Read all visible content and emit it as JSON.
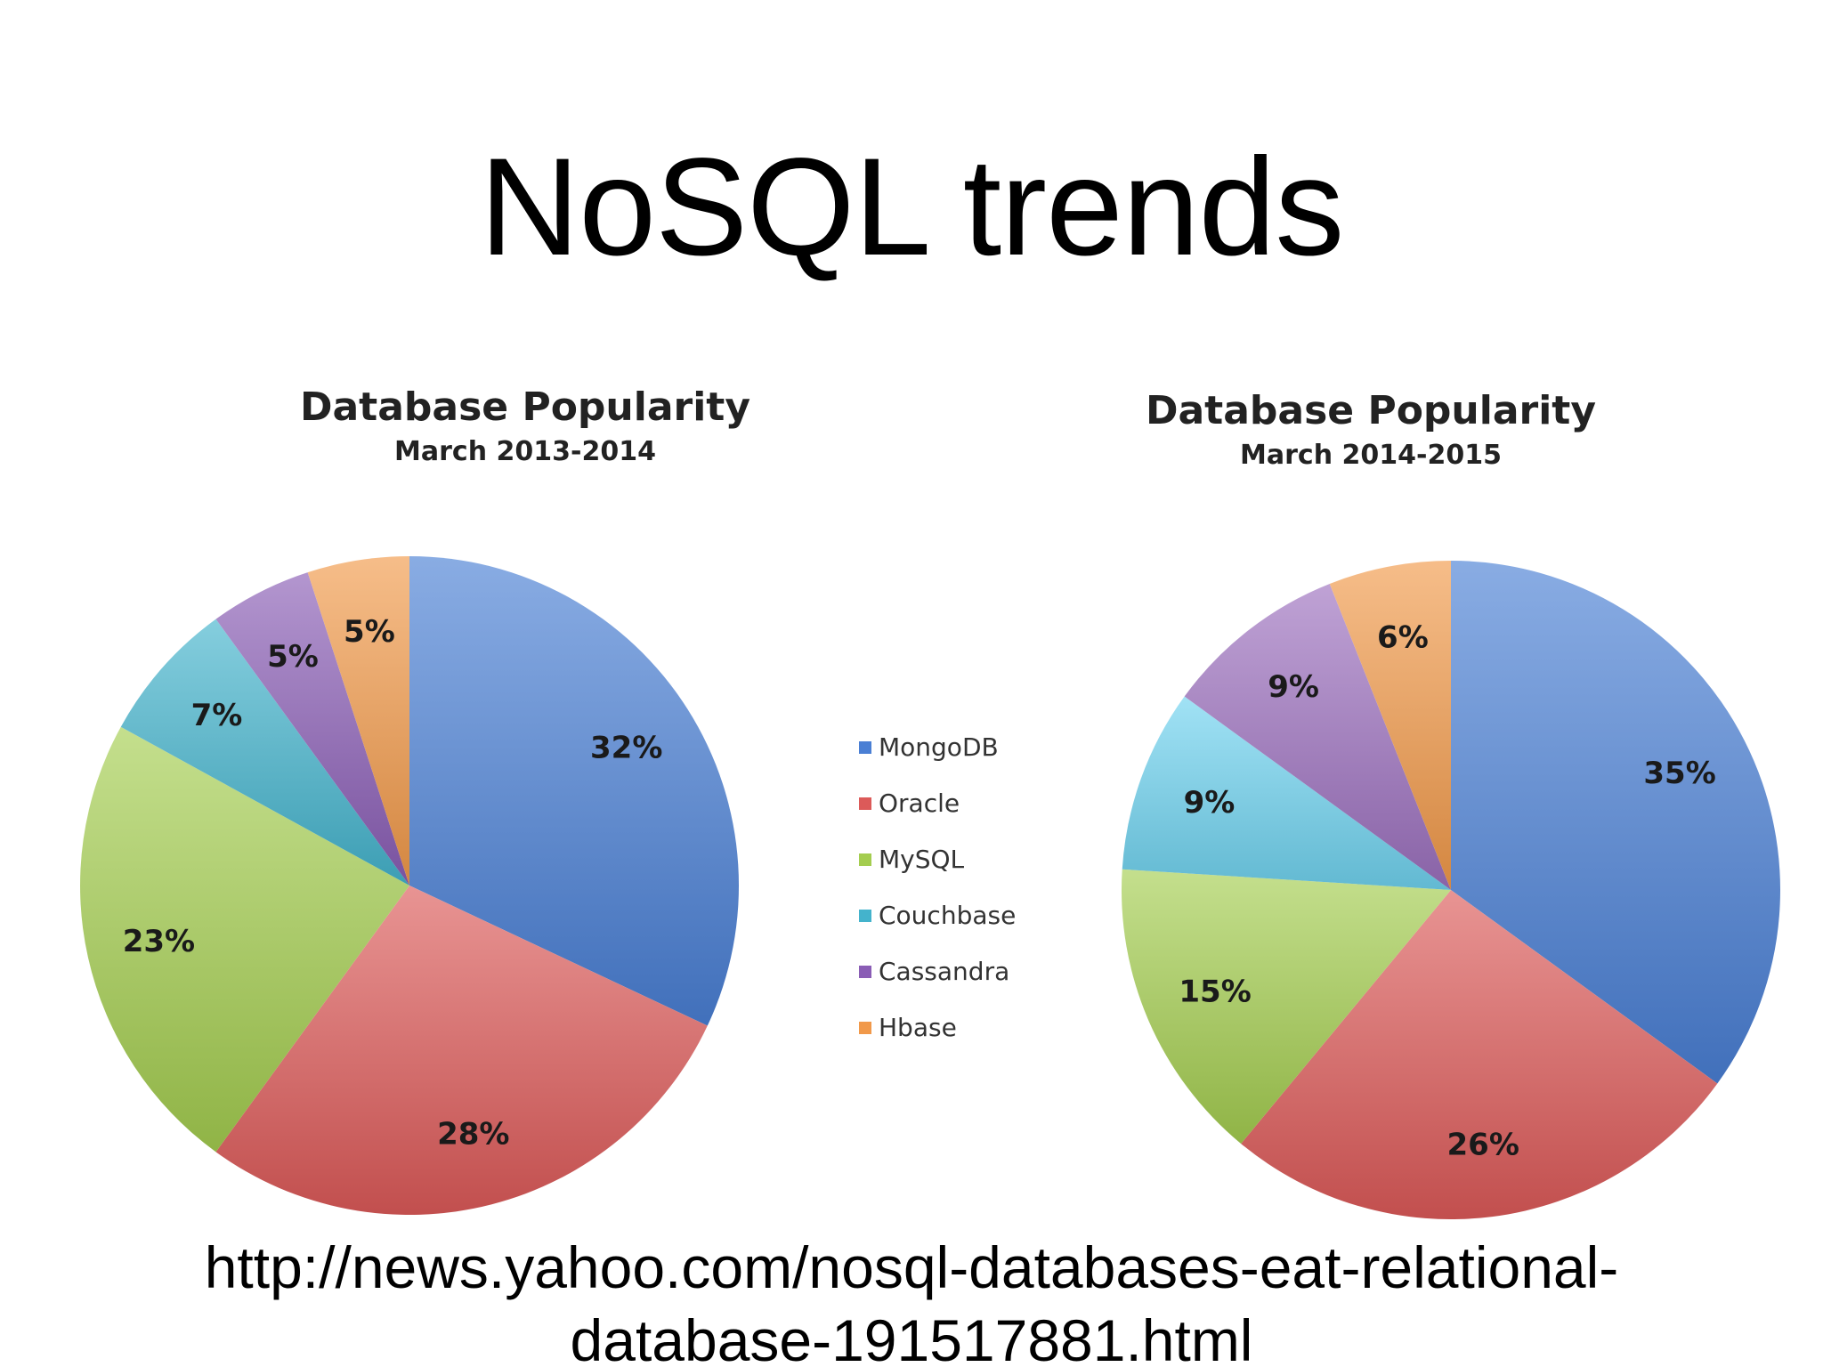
{
  "slide": {
    "title": "NoSQL trends",
    "source_line1": "http://news.yahoo.com/nosql-databases-eat-relational-",
    "source_line2": "database-191517881.html"
  },
  "colors": {
    "MongoDB": "#4a7fd4",
    "Oracle": "#dc5a59",
    "MySQL": "#a4cd4f",
    "Couchbase": "#44b3cc",
    "Cassandra": "#8a5db5",
    "Hbase": "#f1994a",
    "Couchbase_2015": "#6fd2ef",
    "Cassandra_2015": "#9c70be"
  },
  "legend": {
    "items": [
      {
        "label": "MongoDB",
        "color": "#4a7fd4"
      },
      {
        "label": "Oracle",
        "color": "#dc5a59"
      },
      {
        "label": "MySQL",
        "color": "#a4cd4f"
      },
      {
        "label": "Couchbase",
        "color": "#44b3cc"
      },
      {
        "label": "Cassandra",
        "color": "#8a5db5"
      },
      {
        "label": "Hbase",
        "color": "#f1994a"
      }
    ]
  },
  "chart_data": [
    {
      "type": "pie",
      "title": "Database Popularity",
      "subtitle": "March 2013-2014",
      "categories": [
        "MongoDB",
        "Oracle",
        "MySQL",
        "Couchbase",
        "Cassandra",
        "Hbase"
      ],
      "values": [
        32,
        28,
        23,
        7,
        5,
        5
      ],
      "labels": [
        "32%",
        "28%",
        "23%",
        "7%",
        "5%",
        "5%"
      ],
      "colors": [
        "#4a7fd4",
        "#dc5a59",
        "#a4cd4f",
        "#44b3cc",
        "#8a5db5",
        "#f1994a"
      ],
      "legend": "right"
    },
    {
      "type": "pie",
      "title": "Database Popularity",
      "subtitle": "March 2014-2015",
      "categories": [
        "MongoDB",
        "Oracle",
        "MySQL",
        "Couchbase",
        "Cassandra",
        "Hbase"
      ],
      "values": [
        35,
        26,
        15,
        9,
        9,
        6
      ],
      "labels": [
        "35%",
        "26%",
        "15%",
        "9%",
        "9%",
        "6%"
      ],
      "colors": [
        "#4a7fd4",
        "#dc5a59",
        "#a4cd4f",
        "#9c70be",
        "#6fd2ef",
        "#f1994a"
      ],
      "slice_order": [
        "MongoDB",
        "Oracle",
        "MySQL",
        "Cassandra",
        "Couchbase",
        "Hbase"
      ],
      "legend": "left"
    }
  ]
}
